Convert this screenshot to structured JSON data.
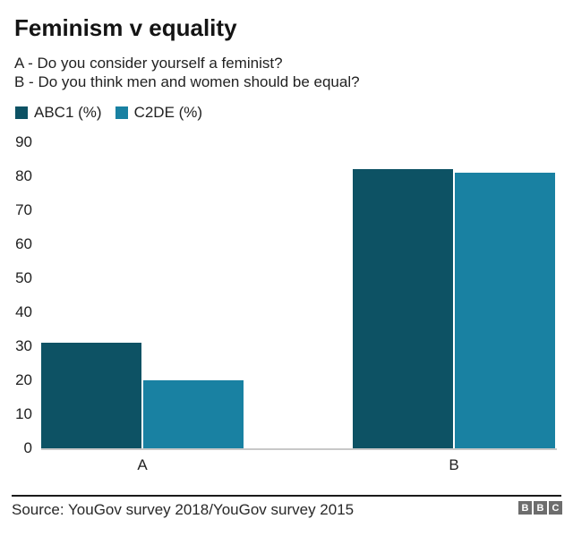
{
  "title": "Feminism v equality",
  "subtitle_lines": [
    "A - Do you consider yourself a feminist?",
    "B - Do you think men and women should be equal?"
  ],
  "legend": {
    "items": [
      {
        "label": "ABC1 (%)",
        "color": "#0d5264"
      },
      {
        "label": "C2DE (%)",
        "color": "#1981a2"
      }
    ]
  },
  "chart_data": {
    "type": "bar",
    "categories": [
      "A",
      "B"
    ],
    "series": [
      {
        "name": "ABC1 (%)",
        "color": "#0d5264",
        "values": [
          31,
          82
        ]
      },
      {
        "name": "C2DE (%)",
        "color": "#1981a2",
        "values": [
          20,
          81
        ]
      }
    ],
    "title": "Feminism v equality",
    "xlabel": "",
    "ylabel": "",
    "ylim": [
      0,
      90
    ],
    "ytick_step": 10,
    "ytick_labels": [
      "0",
      "10",
      "20",
      "30",
      "40",
      "50",
      "60",
      "70",
      "80",
      "90"
    ],
    "grid": false,
    "legend_position": "top-left",
    "baseline_color": "#c8c8c8"
  },
  "footer": {
    "source": "Source: YouGov survey 2018/YouGov survey 2015",
    "logo_letters": [
      "B",
      "B",
      "C"
    ],
    "logo_color": "#6d6d6d"
  }
}
